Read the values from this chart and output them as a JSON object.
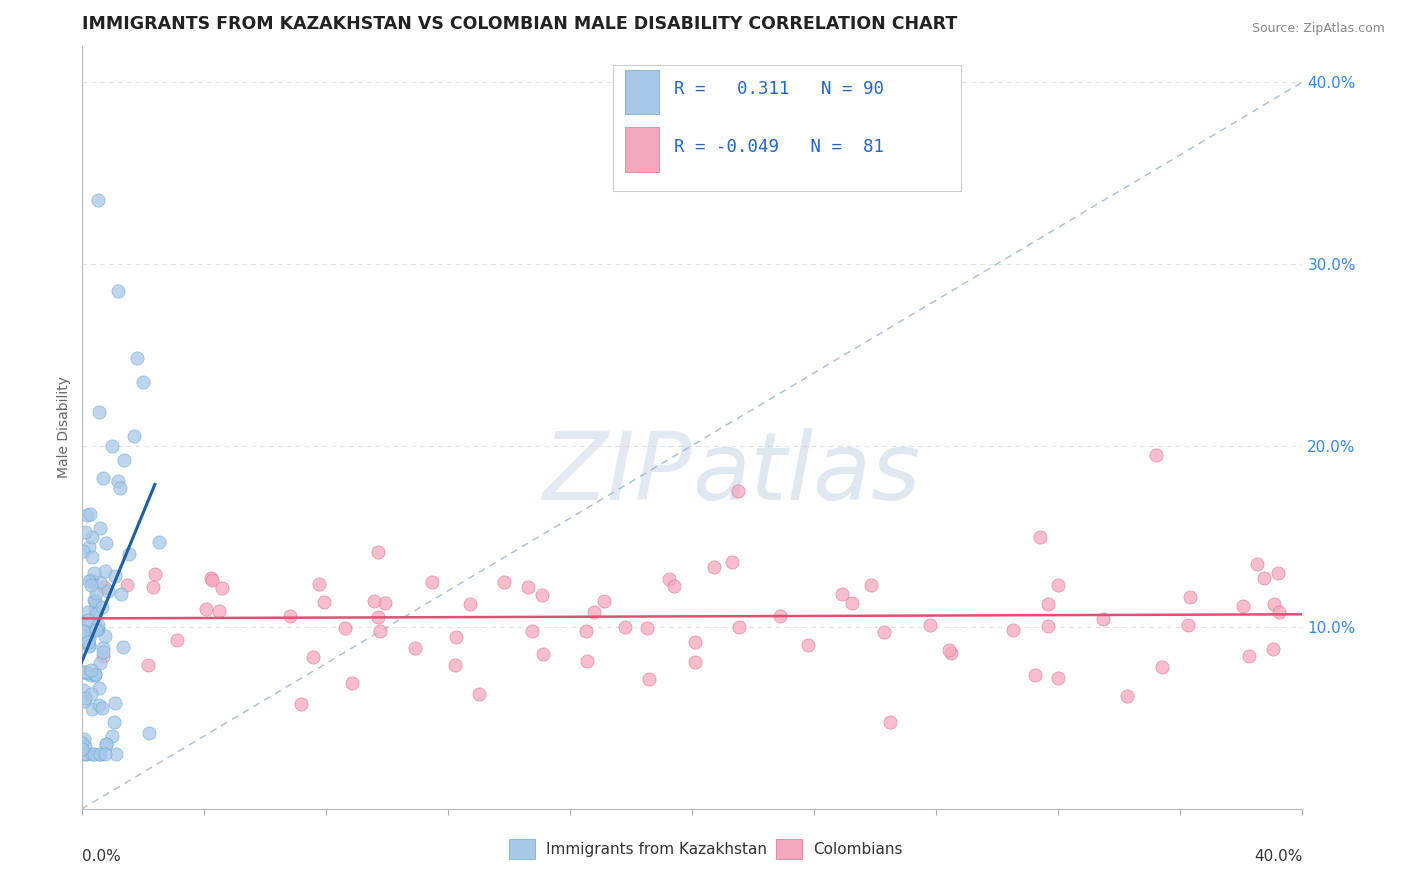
{
  "title": "IMMIGRANTS FROM KAZAKHSTAN VS COLOMBIAN MALE DISABILITY CORRELATION CHART",
  "source": "Source: ZipAtlas.com",
  "ylabel": "Male Disability",
  "legend_label1": "Immigrants from Kazakhstan",
  "legend_label2": "Colombians",
  "R1": 0.311,
  "N1": 90,
  "R2": -0.049,
  "N2": 81,
  "xlim": [
    0.0,
    0.4
  ],
  "ylim": [
    0.0,
    0.42
  ],
  "blue_color": "#a8c8e8",
  "pink_color": "#f4a8bc",
  "blue_edge": "#6aaad4",
  "pink_edge": "#e07090",
  "blue_line_color": "#2060a0",
  "pink_line_color": "#e05070",
  "ref_line_color": "#9ab8d0",
  "watermark": "ZIPAtlas",
  "background_color": "#ffffff",
  "grid_color": "#e0e0e0"
}
